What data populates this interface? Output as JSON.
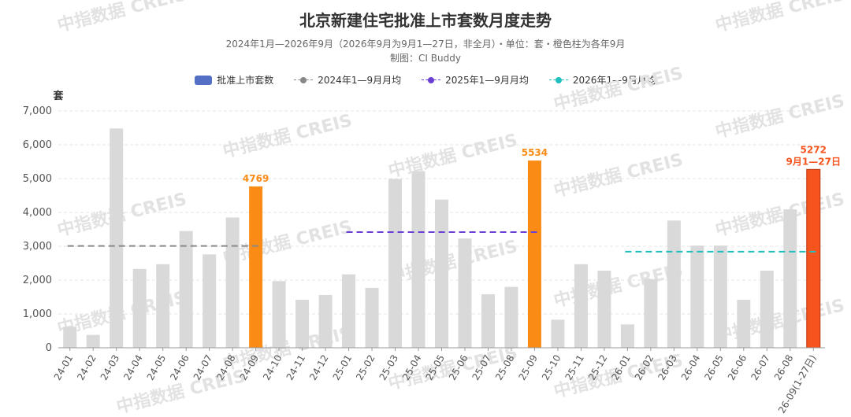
{
  "title": "北京新建住宅批准上市套数月度走势",
  "subtitle": "2024年1月—2026年9月（2026年9月为9月1—27日，非全月）・单位：套・橙色柱为各年9月",
  "credit": "制图：CI Buddy",
  "watermark": "中指数据 CREIS",
  "legend": [
    {
      "label": "批准上市套数",
      "kind": "bar",
      "color": "#5470c6"
    },
    {
      "label": "2024年1—9月月均",
      "kind": "line",
      "color": "#888888"
    },
    {
      "label": "2025年1—9月月均",
      "kind": "line",
      "color": "#6a3fd3"
    },
    {
      "label": "2026年1—9月月均",
      "kind": "line",
      "color": "#1fbfbf"
    }
  ],
  "chart_data": {
    "type": "bar",
    "ylabel": "套",
    "ylim": [
      0,
      7000
    ],
    "yticks": [
      "0",
      "1,000",
      "2,000",
      "3,000",
      "4,000",
      "5,000",
      "6,000",
      "7,000"
    ],
    "grid": true,
    "legend_position": "top",
    "categories": [
      "24-01",
      "24-02",
      "24-03",
      "24-04",
      "24-05",
      "24-06",
      "24-07",
      "24-08",
      "24-09",
      "24-10",
      "24-11",
      "24-12",
      "25-01",
      "25-02",
      "25-03",
      "25-04",
      "25-05",
      "25-06",
      "25-07",
      "25-08",
      "25-09",
      "25-10",
      "25-11",
      "25-12",
      "26-01",
      "26-02",
      "26-03",
      "26-04",
      "26-05",
      "26-06",
      "26-07",
      "26-08",
      "26-09(1-27日)"
    ],
    "series": [
      {
        "name": "批准上市套数",
        "values": [
          620,
          380,
          6480,
          2330,
          2470,
          3450,
          2760,
          3850,
          4769,
          1970,
          1420,
          1560,
          2170,
          1770,
          4990,
          5220,
          4380,
          3230,
          1580,
          1800,
          5534,
          830,
          2470,
          2280,
          690,
          2030,
          3760,
          3020,
          3020,
          1420,
          2280,
          4090,
          5272
        ]
      }
    ],
    "bar_colors": {
      "default": "#d9d9d9",
      "september": "#fa8c16",
      "partial": "#f5541e"
    },
    "highlight": [
      8,
      20
    ],
    "partial": 32,
    "data_labels": [
      {
        "index": 8,
        "text": "4769"
      },
      {
        "index": 20,
        "text": "5534"
      },
      {
        "index": 32,
        "text": "5272",
        "note": "9月1—27日"
      }
    ],
    "averages": [
      {
        "name": "2024年1—9月月均",
        "value": 3010,
        "from": 0,
        "to": 8,
        "color": "#888888"
      },
      {
        "name": "2025年1—9月月均",
        "value": 3420,
        "from": 12,
        "to": 20,
        "color": "#6a3fd3"
      },
      {
        "name": "2026年1—9月月均",
        "value": 2840,
        "from": 24,
        "to": 32,
        "color": "#1fbfbf"
      }
    ]
  }
}
